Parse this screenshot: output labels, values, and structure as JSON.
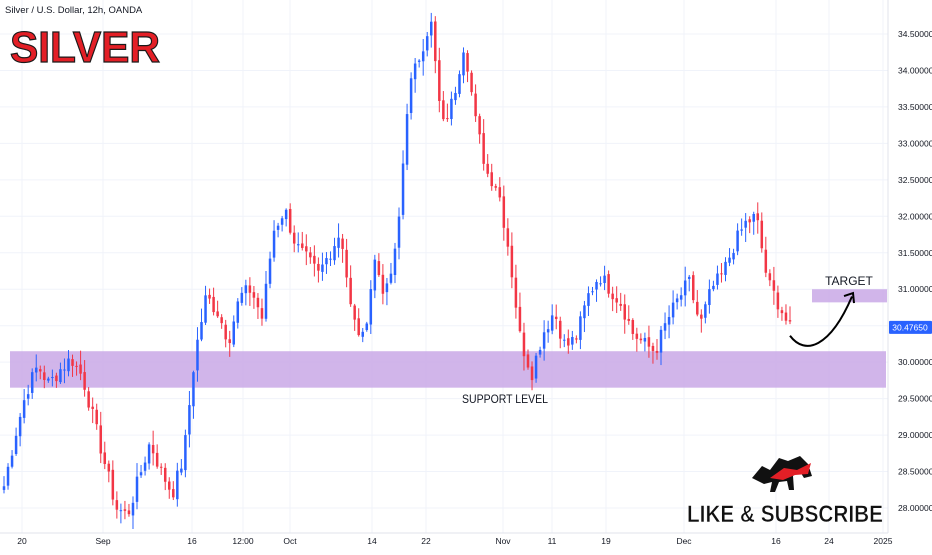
{
  "header": {
    "symbol_line": "Silver / U.S. Dollar, 12h, OANDA",
    "brand_title": "SILVER"
  },
  "annotations": {
    "target_label": "TARGET",
    "support_label": "SUPPORT LEVEL",
    "cta_label": "LIKE & SUBSCRIBE"
  },
  "price_badge": "30.47650",
  "colors": {
    "up": "#2962ff",
    "down": "#f23645",
    "zone": "#c9a8e6",
    "badge": "#2962ff",
    "title_red": "#e31f26"
  },
  "icons": [
    "bull-bear-logo-icon",
    "forecast-arrow-icon"
  ],
  "chart_data": {
    "type": "candlestick",
    "timeframe": "12h",
    "ylim": [
      27.85,
      34.85
    ],
    "y_ticks": [
      "28.00000",
      "28.50000",
      "29.00000",
      "29.50000",
      "30.00000",
      "30.50000",
      "31.00000",
      "31.50000",
      "32.00000",
      "32.50000",
      "33.00000",
      "33.50000",
      "34.00000",
      "34.50000"
    ],
    "x_ticks": [
      "20",
      "Sep",
      "16",
      "12:00",
      "Oct",
      "14",
      "22",
      "Nov",
      "11",
      "19",
      "Dec",
      "16",
      "24",
      "2025"
    ],
    "support_zone": [
      29.65,
      30.15
    ],
    "target_zone": [
      30.82,
      31.0
    ],
    "last_price": 30.4765,
    "close_path": [
      28.3,
      29.0,
      29.6,
      29.95,
      29.7,
      29.9,
      30.05,
      29.8,
      29.2,
      28.6,
      28.0,
      27.9,
      28.4,
      28.9,
      28.5,
      28.2,
      28.7,
      30.1,
      30.9,
      30.7,
      30.3,
      30.9,
      31.0,
      30.6,
      31.8,
      32.1,
      31.6,
      31.4,
      31.2,
      31.5,
      31.8,
      30.6,
      30.3,
      31.4,
      30.9,
      31.6,
      33.7,
      34.2,
      34.7,
      33.2,
      33.6,
      34.4,
      33.3,
      32.6,
      32.4,
      31.5,
      30.3,
      29.85,
      30.4,
      30.7,
      30.2,
      30.35,
      30.9,
      31.2,
      31.0,
      30.8,
      30.4,
      30.25,
      30.15,
      30.55,
      30.85,
      31.1,
      30.5,
      31.0,
      31.2,
      31.6,
      31.9,
      32.0,
      31.1,
      30.8,
      30.45
    ]
  }
}
